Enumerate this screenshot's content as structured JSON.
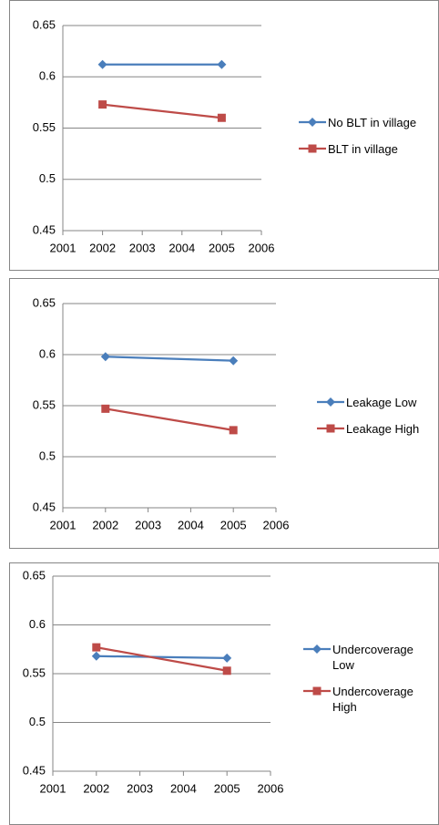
{
  "chart_data": [
    {
      "type": "line",
      "x": [
        2002,
        2005
      ],
      "xlim": [
        2001,
        2006
      ],
      "xticks": [
        2001,
        2002,
        2003,
        2004,
        2005,
        2006
      ],
      "ylim": [
        0.45,
        0.65
      ],
      "yticks": [
        0.45,
        0.5,
        0.55,
        0.6,
        0.65
      ],
      "grid": true,
      "legend": "right",
      "series": [
        {
          "name": "No BLT in village",
          "color": "#4a7ebb",
          "values": [
            0.612,
            0.612
          ]
        },
        {
          "name": "BLT in village",
          "color": "#be4b48",
          "values": [
            0.573,
            0.56
          ]
        }
      ]
    },
    {
      "type": "line",
      "x": [
        2002,
        2005
      ],
      "xlim": [
        2001,
        2006
      ],
      "xticks": [
        2001,
        2002,
        2003,
        2004,
        2005,
        2006
      ],
      "ylim": [
        0.45,
        0.65
      ],
      "yticks": [
        0.45,
        0.5,
        0.55,
        0.6,
        0.65
      ],
      "grid": true,
      "legend": "right",
      "series": [
        {
          "name": "Leakage Low",
          "color": "#4a7ebb",
          "values": [
            0.598,
            0.594
          ]
        },
        {
          "name": "Leakage High",
          "color": "#be4b48",
          "values": [
            0.547,
            0.526
          ]
        }
      ]
    },
    {
      "type": "line",
      "x": [
        2002,
        2005
      ],
      "xlim": [
        2001,
        2006
      ],
      "xticks": [
        2001,
        2002,
        2003,
        2004,
        2005,
        2006
      ],
      "ylim": [
        0.45,
        0.65
      ],
      "yticks": [
        0.45,
        0.5,
        0.55,
        0.6,
        0.65
      ],
      "grid": true,
      "legend": "right",
      "series": [
        {
          "name": "Undercoverage Low",
          "color": "#4a7ebb",
          "values": [
            0.568,
            0.566
          ]
        },
        {
          "name": "Undercoverage High",
          "color": "#be4b48",
          "values": [
            0.577,
            0.553
          ]
        }
      ]
    }
  ]
}
